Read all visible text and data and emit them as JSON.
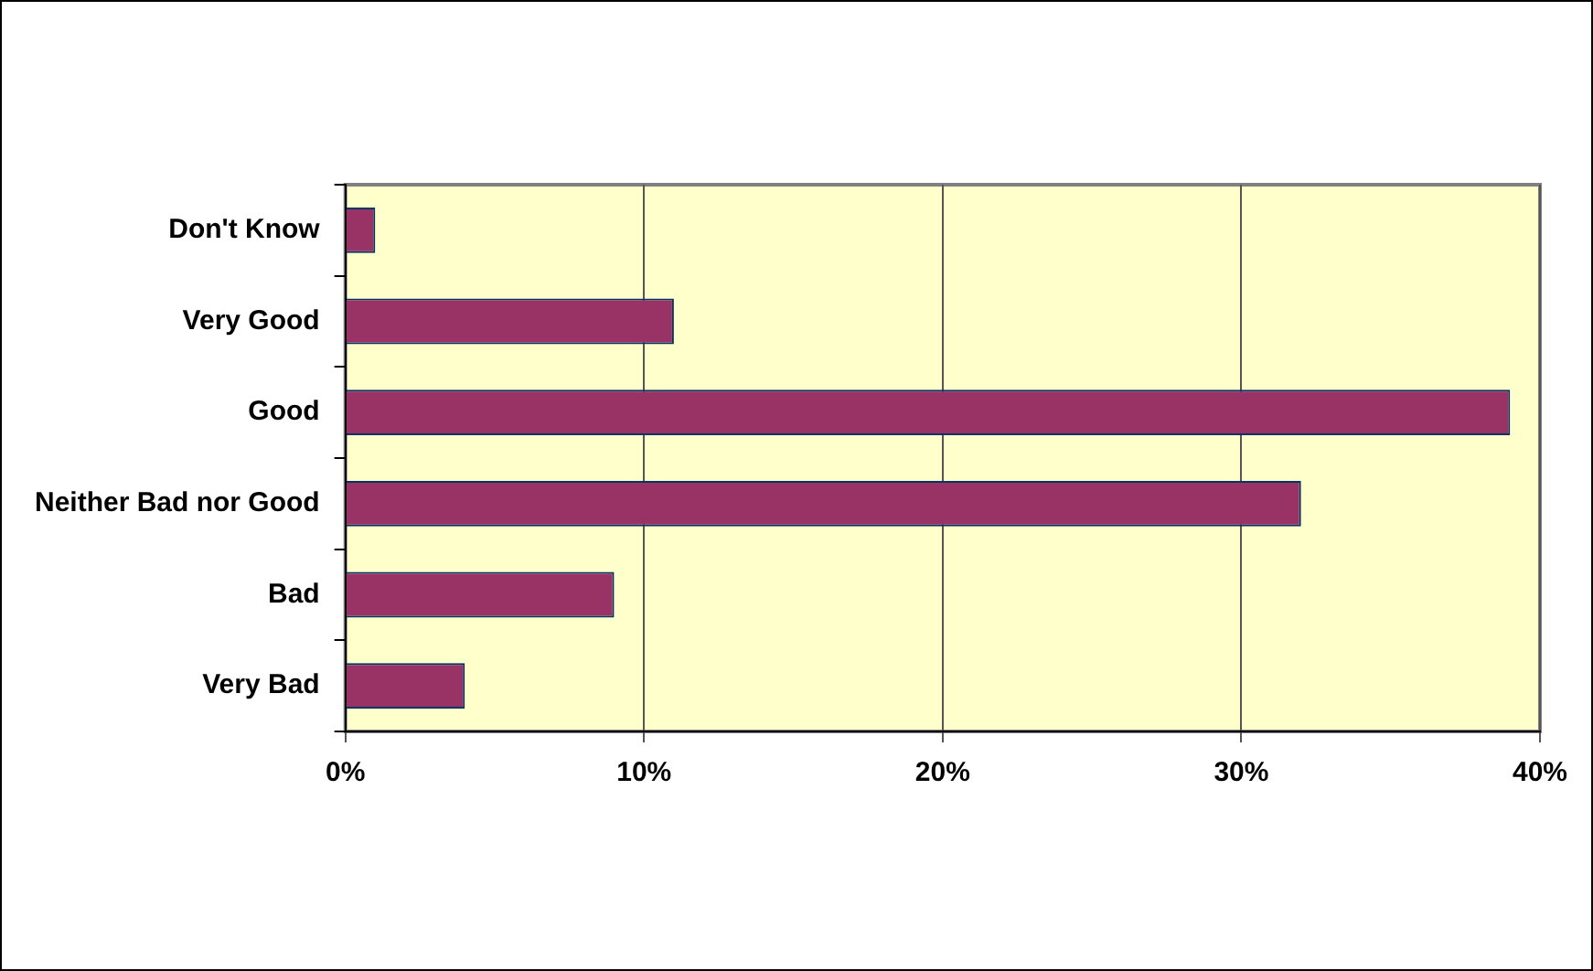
{
  "chart_data": {
    "type": "bar",
    "orientation": "horizontal",
    "categories": [
      "Don't Know",
      "Very Good",
      "Good",
      "Neither Bad nor Good",
      "Bad",
      "Very Bad"
    ],
    "values": [
      1,
      11,
      39,
      32,
      9,
      4
    ],
    "color": "#993366",
    "xlim": [
      0,
      40
    ],
    "xticks": [
      {
        "value": 0,
        "label": "0%"
      },
      {
        "value": 10,
        "label": "10%"
      },
      {
        "value": 20,
        "label": "20%"
      },
      {
        "value": 30,
        "label": "30%"
      },
      {
        "value": 40,
        "label": "40%"
      }
    ],
    "grid": "x",
    "legend": false
  }
}
